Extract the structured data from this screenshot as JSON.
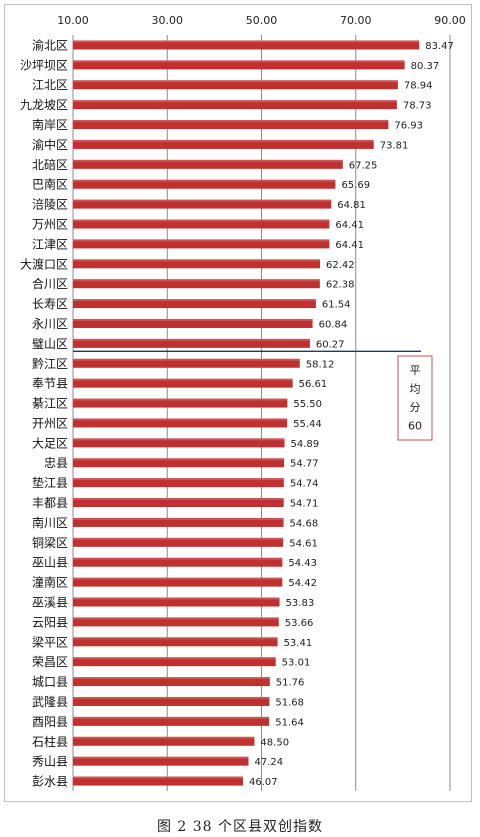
{
  "caption": "图 2 38 个区县双创指数",
  "chart_data": {
    "type": "bar",
    "orientation": "horizontal",
    "title": "",
    "xlabel": "",
    "ylabel": "",
    "xlim": [
      10,
      90
    ],
    "x_ticks": [
      "10.00",
      "30.00",
      "50.00",
      "70.00",
      "90.00"
    ],
    "bar_color": "#c0302f",
    "categories": [
      "渝北区",
      "沙坪坝区",
      "江北区",
      "九龙坡区",
      "南岸区",
      "渝中区",
      "北碚区",
      "巴南区",
      "涪陵区",
      "万州区",
      "江津区",
      "大渡口区",
      "合川区",
      "长寿区",
      "永川区",
      "璧山区",
      "黔江区",
      "奉节县",
      "綦江区",
      "开州区",
      "大足区",
      "忠县",
      "垫江县",
      "丰都县",
      "南川区",
      "铜梁区",
      "巫山县",
      "潼南区",
      "巫溪县",
      "云阳县",
      "梁平区",
      "荣昌区",
      "城口县",
      "武隆县",
      "酉阳县",
      "石柱县",
      "秀山县",
      "彭水县"
    ],
    "values": [
      83.47,
      80.37,
      78.94,
      78.73,
      76.93,
      73.81,
      67.25,
      65.69,
      64.81,
      64.41,
      64.41,
      62.42,
      62.38,
      61.54,
      60.84,
      60.27,
      58.12,
      56.61,
      55.5,
      55.44,
      54.89,
      54.77,
      54.74,
      54.71,
      54.68,
      54.61,
      54.43,
      54.42,
      53.83,
      53.66,
      53.41,
      53.01,
      51.76,
      51.68,
      51.64,
      48.5,
      47.24,
      46.07
    ],
    "value_labels": [
      "83.47",
      "80.37",
      "78.94",
      "78.73",
      "76.93",
      "73.81",
      "67.25",
      "65.69",
      "64.81",
      "64.41",
      "64.41",
      "62.42",
      "62.38",
      "61.54",
      "60.84",
      "60.27",
      "58.12",
      "56.61",
      "55.50",
      "55.44",
      "54.89",
      "54.77",
      "54.74",
      "54.71",
      "54.68",
      "54.61",
      "54.43",
      "54.42",
      "53.83",
      "53.66",
      "53.41",
      "53.01",
      "51.76",
      "51.68",
      "51.64",
      "48.50",
      "47.24",
      "46.07"
    ],
    "average_line": {
      "value": 60,
      "label_lines": [
        "平",
        "均",
        "分",
        "60"
      ],
      "color": "#1f3864"
    }
  }
}
